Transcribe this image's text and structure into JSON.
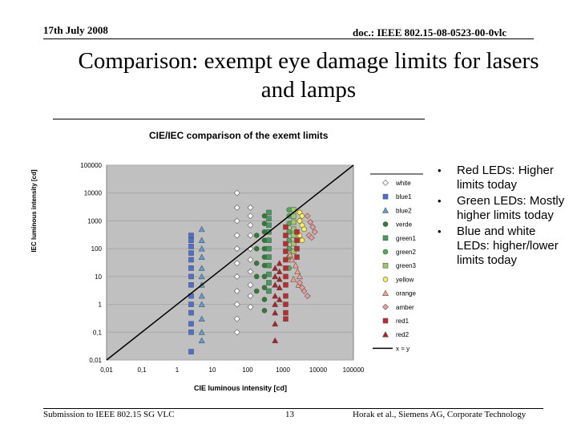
{
  "header": {
    "date": "17th July 2008",
    "doc": "doc.: IEEE 802.15-08-0523-00-0vlc"
  },
  "slide_title": "Comparison: exempt eye damage limits for lasers and lamps",
  "bullets": [
    "Red LEDs: Higher limits today",
    "Green LEDs: Mostly higher limits today",
    "Blue and white LEDs: higher/lower limits today"
  ],
  "footer": {
    "left": "Submission to IEEE 802.15 SG VLC",
    "page": "13",
    "right": "Horak et al., Siemens AG, Corporate Technology"
  },
  "chart_data": {
    "type": "scatter",
    "title": "CIE/IEC comparison of the exemt limits",
    "xlabel": "CIE luminous intensity [cd]",
    "ylabel": "IEC luminous intensity [cd]",
    "x_scale": "log",
    "y_scale": "log",
    "xlim": [
      0.01,
      100000
    ],
    "ylim": [
      0.01,
      100000
    ],
    "x_tick_labels": [
      "0,01",
      "0,1",
      "1",
      "10",
      "100",
      "1000",
      "10000",
      "100000"
    ],
    "y_tick_labels": [
      "0,01",
      "0,1",
      "1",
      "10",
      "100",
      "1000",
      "10000",
      "100000"
    ],
    "grid": true,
    "legend_position": "right",
    "background": "#c0c0c0",
    "series": [
      {
        "name": "white",
        "marker": "diamond",
        "color": "#ffffff",
        "points": [
          [
            50,
            10000
          ],
          [
            50,
            3000
          ],
          [
            50,
            1000
          ],
          [
            50,
            300
          ],
          [
            50,
            100
          ],
          [
            50,
            30
          ],
          [
            50,
            10
          ],
          [
            50,
            3
          ],
          [
            50,
            1
          ],
          [
            50,
            0.3
          ],
          [
            50,
            0.1
          ],
          [
            120,
            3000
          ],
          [
            120,
            1500
          ],
          [
            120,
            700
          ],
          [
            120,
            300
          ],
          [
            120,
            100
          ],
          [
            120,
            40
          ],
          [
            120,
            15
          ],
          [
            120,
            5
          ],
          [
            120,
            2
          ],
          [
            120,
            0.8
          ]
        ]
      },
      {
        "name": "blue1",
        "marker": "square",
        "color": "#4a6fd8",
        "points": [
          [
            2.5,
            300
          ],
          [
            2.5,
            200
          ],
          [
            2.5,
            120
          ],
          [
            2.5,
            70
          ],
          [
            2.5,
            40
          ],
          [
            2.5,
            20
          ],
          [
            2.5,
            10
          ],
          [
            2.5,
            5
          ],
          [
            2.5,
            2
          ],
          [
            2.5,
            1
          ],
          [
            2.5,
            0.5
          ],
          [
            2.5,
            0.2
          ],
          [
            2.5,
            0.1
          ],
          [
            2.5,
            0.02
          ]
        ]
      },
      {
        "name": "blue2",
        "marker": "triangle",
        "color": "#5aa0d8",
        "points": [
          [
            5,
            500
          ],
          [
            5,
            200
          ],
          [
            5,
            100
          ],
          [
            5,
            50
          ],
          [
            5,
            20
          ],
          [
            5,
            10
          ],
          [
            5,
            5
          ],
          [
            5,
            2
          ],
          [
            5,
            1
          ],
          [
            5,
            0.3
          ],
          [
            5,
            0.1
          ],
          [
            5,
            0.05
          ]
        ]
      },
      {
        "name": "verde",
        "marker": "circle",
        "color": "#2e7d32",
        "points": [
          [
            300,
            1500
          ],
          [
            300,
            800
          ],
          [
            300,
            400
          ],
          [
            300,
            200
          ],
          [
            300,
            100
          ],
          [
            300,
            50
          ],
          [
            300,
            25
          ],
          [
            300,
            10
          ],
          [
            300,
            4
          ],
          [
            300,
            1.5
          ],
          [
            300,
            0.6
          ],
          [
            180,
            300
          ],
          [
            180,
            100
          ],
          [
            180,
            30
          ],
          [
            180,
            10
          ],
          [
            180,
            3
          ]
        ]
      },
      {
        "name": "green1",
        "marker": "square",
        "color": "#3f9e5a",
        "points": [
          [
            400,
            2000
          ],
          [
            400,
            1200
          ],
          [
            400,
            700
          ],
          [
            400,
            400
          ],
          [
            400,
            200
          ],
          [
            400,
            100
          ],
          [
            400,
            50
          ],
          [
            400,
            25
          ],
          [
            400,
            12
          ],
          [
            400,
            6
          ],
          [
            400,
            3
          ]
        ]
      },
      {
        "name": "green2",
        "marker": "circle",
        "color": "#4caf50",
        "points": [
          [
            1500,
            2500
          ],
          [
            1500,
            1500
          ],
          [
            1500,
            800
          ],
          [
            1500,
            400
          ],
          [
            1500,
            200
          ],
          [
            1500,
            100
          ],
          [
            1500,
            50
          ],
          [
            1500,
            20
          ]
        ]
      },
      {
        "name": "green3",
        "marker": "square",
        "color": "#9ccc65",
        "points": [
          [
            2000,
            2500
          ],
          [
            2000,
            1500
          ],
          [
            2000,
            900
          ],
          [
            2000,
            500
          ],
          [
            2000,
            300
          ],
          [
            2000,
            150
          ],
          [
            2000,
            80
          ]
        ]
      },
      {
        "name": "yellow",
        "marker": "circle",
        "color": "#ffee58",
        "points": [
          [
            3000,
            2000
          ],
          [
            3500,
            1500
          ],
          [
            3000,
            1000
          ],
          [
            3500,
            700
          ],
          [
            4000,
            500
          ],
          [
            3000,
            300
          ],
          [
            3500,
            200
          ]
        ]
      },
      {
        "name": "orange",
        "marker": "triangle",
        "color": "#ff9e80",
        "points": [
          [
            1800,
            40
          ],
          [
            2300,
            25
          ],
          [
            2600,
            15
          ],
          [
            3000,
            10
          ],
          [
            1600,
            60
          ],
          [
            2000,
            8
          ],
          [
            2800,
            5
          ]
        ]
      },
      {
        "name": "amber",
        "marker": "diamond",
        "color": "#ef9a9a",
        "points": [
          [
            5000,
            1500
          ],
          [
            6000,
            900
          ],
          [
            7000,
            600
          ],
          [
            8000,
            400
          ],
          [
            5500,
            300
          ],
          [
            6500,
            250
          ],
          [
            3000,
            6
          ],
          [
            4000,
            3
          ],
          [
            5000,
            2
          ],
          [
            3500,
            4
          ]
        ]
      },
      {
        "name": "red1",
        "marker": "square",
        "color": "#c62828",
        "points": [
          [
            1200,
            600
          ],
          [
            1200,
            300
          ],
          [
            1200,
            150
          ],
          [
            1200,
            80
          ],
          [
            1200,
            40
          ],
          [
            1200,
            20
          ],
          [
            1200,
            10
          ],
          [
            1200,
            5
          ],
          [
            1200,
            2
          ],
          [
            1200,
            1
          ],
          [
            1200,
            0.5
          ],
          [
            1200,
            0.3
          ],
          [
            2500,
            100
          ],
          [
            2500,
            50
          ],
          [
            2500,
            200
          ],
          [
            2500,
            400
          ]
        ]
      },
      {
        "name": "red2",
        "marker": "triangle",
        "color": "#b71c1c",
        "points": [
          [
            600,
            20
          ],
          [
            600,
            10
          ],
          [
            600,
            5
          ],
          [
            600,
            2
          ],
          [
            600,
            1
          ],
          [
            600,
            0.5
          ],
          [
            600,
            0.2
          ],
          [
            600,
            0.05
          ],
          [
            800,
            30
          ],
          [
            800,
            15
          ],
          [
            800,
            8
          ],
          [
            800,
            4
          ],
          [
            800,
            1.5
          ]
        ]
      },
      {
        "name": "x = y",
        "marker": "line",
        "color": "#000000",
        "points": [
          [
            0.01,
            0.01
          ],
          [
            100000,
            100000
          ]
        ]
      }
    ]
  }
}
